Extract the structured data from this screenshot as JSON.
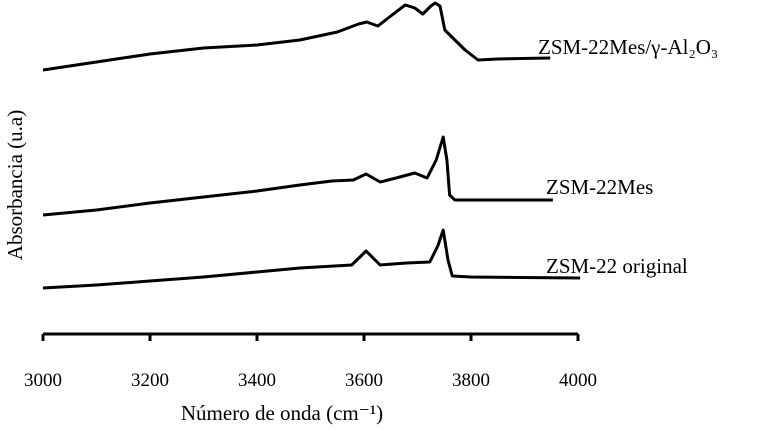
{
  "chart_data": {
    "type": "line",
    "title": "",
    "xlabel": "Número de onda (cm⁻¹)",
    "ylabel": "Absorbancia (u.a)",
    "xlim": [
      3000,
      4000
    ],
    "ylim": [
      0,
      3.34
    ],
    "xticks": [
      "3000",
      "3200",
      "3400",
      "3600",
      "3800",
      "4000"
    ],
    "grid": false,
    "legend": "inline labels at right end of each curve",
    "series": [
      {
        "name": "ZSM-22Mes/γ-Al₂O₃",
        "x": [
          3000,
          3100,
          3200,
          3300,
          3400,
          3480,
          3550,
          3590,
          3605,
          3626,
          3650,
          3677,
          3695,
          3710,
          3725,
          3733,
          3742,
          3751,
          3770,
          3789,
          3813,
          3850,
          3948
        ],
        "y": [
          2.64,
          2.72,
          2.8,
          2.86,
          2.89,
          2.94,
          3.02,
          3.1,
          3.12,
          3.08,
          3.18,
          3.29,
          3.26,
          3.2,
          3.28,
          3.31,
          3.28,
          3.04,
          2.94,
          2.84,
          2.74,
          2.75,
          2.76
        ]
      },
      {
        "name": "ZSM-22Mes",
        "x": [
          3000,
          3100,
          3200,
          3300,
          3400,
          3480,
          3540,
          3580,
          3604,
          3630,
          3660,
          3695,
          3718,
          3735,
          3748,
          3755,
          3760,
          3770,
          3850,
          3953
        ],
        "y": [
          1.19,
          1.24,
          1.31,
          1.37,
          1.43,
          1.49,
          1.53,
          1.54,
          1.6,
          1.52,
          1.56,
          1.61,
          1.56,
          1.74,
          1.97,
          1.74,
          1.39,
          1.34,
          1.34,
          1.34
        ]
      },
      {
        "name": "ZSM-22 original",
        "x": [
          3000,
          3100,
          3200,
          3300,
          3400,
          3480,
          3577,
          3604,
          3630,
          3680,
          3723,
          3738,
          3748,
          3757,
          3765,
          3800,
          4004
        ],
        "y": [
          0.46,
          0.49,
          0.53,
          0.57,
          0.62,
          0.66,
          0.69,
          0.83,
          0.69,
          0.71,
          0.72,
          0.88,
          1.04,
          0.74,
          0.58,
          0.57,
          0.56
        ]
      }
    ]
  }
}
